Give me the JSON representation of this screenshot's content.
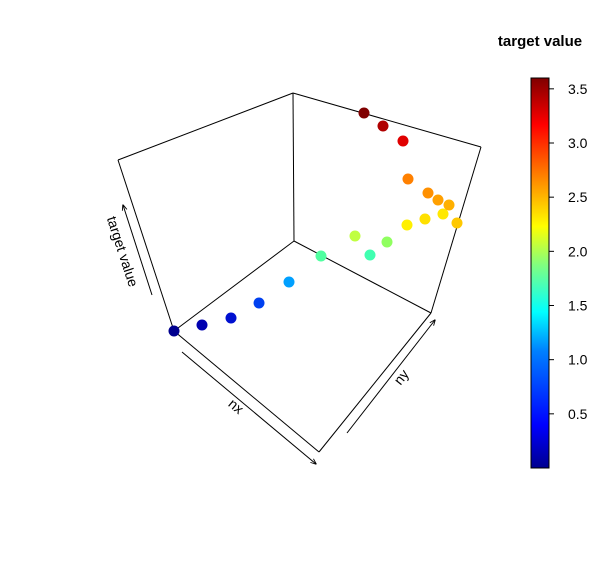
{
  "chart_data": {
    "type": "scatter",
    "projection": "3d",
    "title": "",
    "xlabel": "nx",
    "ylabel": "ny",
    "zlabel": "target value",
    "legend": {
      "title": "target value",
      "placement": "right",
      "type": "colorbar",
      "ticks": [
        "0.5",
        "1.0",
        "1.5",
        "2.0",
        "2.5",
        "3.0",
        "3.5"
      ],
      "range": [
        0.0,
        3.6
      ],
      "colormap": [
        "#00008F",
        "#0000FF",
        "#0080FF",
        "#00FFFF",
        "#80FF80",
        "#FFFF00",
        "#FF8000",
        "#FF0000",
        "#800000"
      ]
    },
    "points": [
      {
        "color": "#00008F",
        "value": 0.0
      },
      {
        "color": "#0000B0",
        "value": 0.15
      },
      {
        "color": "#0010D0",
        "value": 0.3
      },
      {
        "color": "#0040F0",
        "value": 0.6
      },
      {
        "color": "#00A0FF",
        "value": 1.1
      },
      {
        "color": "#50FFA0",
        "value": 1.7
      },
      {
        "color": "#C0FF40",
        "value": 2.0
      },
      {
        "color": "#40FFB0",
        "value": 1.6
      },
      {
        "color": "#90FF60",
        "value": 1.9
      },
      {
        "color": "#FFF000",
        "value": 2.2
      },
      {
        "color": "#FFE000",
        "value": 2.25
      },
      {
        "color": "#FFE800",
        "value": 2.25
      },
      {
        "color": "#FFC800",
        "value": 2.4
      },
      {
        "color": "#FFB000",
        "value": 2.5
      },
      {
        "color": "#FFA000",
        "value": 2.55
      },
      {
        "color": "#FF9000",
        "value": 2.6
      },
      {
        "color": "#FF8000",
        "value": 2.7
      },
      {
        "color": "#E00000",
        "value": 3.1
      },
      {
        "color": "#B00000",
        "value": 3.35
      },
      {
        "color": "#800000",
        "value": 3.55
      }
    ]
  }
}
